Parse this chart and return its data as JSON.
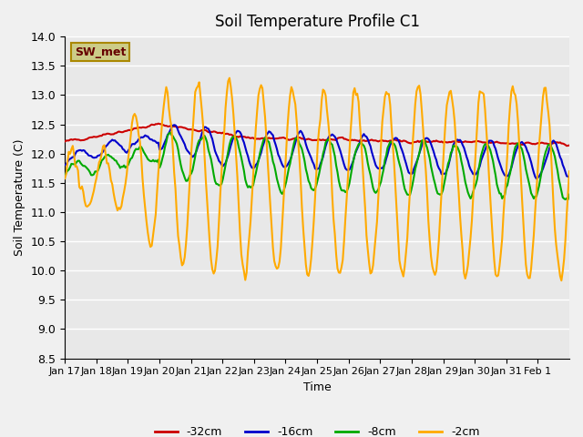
{
  "title": "Soil Temperature Profile C1",
  "xlabel": "Time",
  "ylabel": "Soil Temperature (C)",
  "ylim": [
    8.5,
    14.0
  ],
  "yticks": [
    8.5,
    9.0,
    9.5,
    10.0,
    10.5,
    11.0,
    11.5,
    12.0,
    12.5,
    13.0,
    13.5,
    14.0
  ],
  "xtick_labels": [
    "Jan 17",
    "Jan 18",
    "Jan 19",
    "Jan 20",
    "Jan 21",
    "Jan 22",
    "Jan 23",
    "Jan 24",
    "Jan 25",
    "Jan 26",
    "Jan 27",
    "Jan 28",
    "Jan 29",
    "Jan 30",
    "Jan 31",
    "Feb 1"
  ],
  "legend_label": "SW_met",
  "series_labels": [
    "-32cm",
    "-16cm",
    "-8cm",
    "-2cm"
  ],
  "series_colors": [
    "#cc0000",
    "#0000cc",
    "#00aa00",
    "#ffaa00"
  ],
  "line_width": 1.5,
  "plot_bg_color": "#e8e8e8",
  "grid_color": "#ffffff",
  "legend_box_facecolor": "#cccc88",
  "legend_box_edgecolor": "#aa8800",
  "legend_text_color": "#660000",
  "n_days": 16
}
